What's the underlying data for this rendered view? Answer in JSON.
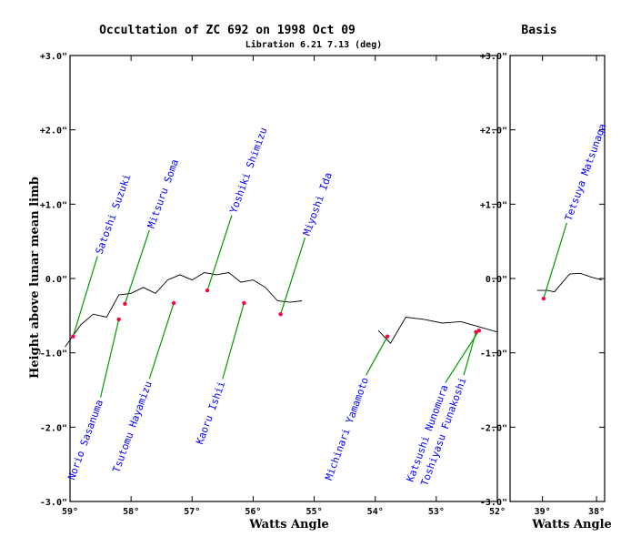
{
  "chart_data": {
    "type": "scatter",
    "title": "Occultation of ZC  692 on 1998 Oct 09",
    "subtitle": "Libration    6.21   7.13 (deg)",
    "basis_title": "Basis",
    "ylabel": "Height above lunar mean limb",
    "xlabel": "Watts Angle",
    "main_panel": {
      "xlim": [
        59,
        52
      ],
      "ylim": [
        -3,
        3
      ],
      "x_ticks": [
        {
          "v": 59,
          "label": "59°"
        },
        {
          "v": 58,
          "label": "58°"
        },
        {
          "v": 57,
          "label": "57°"
        },
        {
          "v": 56,
          "label": "56°"
        },
        {
          "v": 55,
          "label": "55°"
        },
        {
          "v": 54,
          "label": "54°"
        },
        {
          "v": 53,
          "label": "53°"
        },
        {
          "v": 52,
          "label": "52°"
        }
      ],
      "y_ticks": [
        {
          "v": 3,
          "label": "+3.0\""
        },
        {
          "v": 2,
          "label": "+2.0\""
        },
        {
          "v": 1,
          "label": "+1.0\""
        },
        {
          "v": 0,
          "label": "0.0\""
        },
        {
          "v": -1,
          "label": "-1.0\""
        },
        {
          "v": -2,
          "label": "-2.0\""
        },
        {
          "v": -3,
          "label": "-3.0\""
        }
      ],
      "limb_profile": [
        [
          [
            59.08,
            -0.92
          ],
          [
            58.82,
            -0.62
          ],
          [
            58.62,
            -0.48
          ],
          [
            58.4,
            -0.52
          ],
          [
            58.2,
            -0.22
          ],
          [
            58.0,
            -0.2
          ],
          [
            57.8,
            -0.12
          ],
          [
            57.6,
            -0.2
          ],
          [
            57.4,
            -0.02
          ],
          [
            57.2,
            0.05
          ],
          [
            57.0,
            -0.02
          ],
          [
            56.8,
            0.08
          ],
          [
            56.6,
            0.05
          ],
          [
            56.4,
            0.08
          ],
          [
            56.2,
            -0.05
          ],
          [
            56.0,
            -0.02
          ],
          [
            55.8,
            -0.12
          ],
          [
            55.6,
            -0.3
          ],
          [
            55.4,
            -0.32
          ],
          [
            55.2,
            -0.3
          ]
        ],
        [
          [
            53.95,
            -0.7
          ],
          [
            53.75,
            -0.87
          ],
          [
            53.5,
            -0.52
          ],
          [
            53.2,
            -0.55
          ],
          [
            52.9,
            -0.6
          ],
          [
            52.6,
            -0.58
          ],
          [
            52.3,
            -0.65
          ],
          [
            52.0,
            -0.72
          ]
        ]
      ],
      "observers": [
        {
          "name": "Satoshi Suzuki",
          "x": 58.95,
          "y": -0.78,
          "label_x": 58.55,
          "label_y": 0.3
        },
        {
          "name": "Mitsuru Soma",
          "x": 58.1,
          "y": -0.34,
          "label_x": 57.7,
          "label_y": 0.65
        },
        {
          "name": "Yoshiki Shimizu",
          "x": 56.75,
          "y": -0.16,
          "label_x": 56.35,
          "label_y": 0.85
        },
        {
          "name": "Miyoshi Ida",
          "x": 55.55,
          "y": -0.48,
          "label_x": 55.15,
          "label_y": 0.55
        },
        {
          "name": "Norio Sasanuma",
          "x": 58.2,
          "y": -0.55,
          "label_x": 58.5,
          "label_y": -1.6
        },
        {
          "name": "Tsutomu Hayamizu",
          "x": 57.3,
          "y": -0.33,
          "label_x": 57.7,
          "label_y": -1.35
        },
        {
          "name": "Kaoru Ishii",
          "x": 56.15,
          "y": -0.33,
          "label_x": 56.5,
          "label_y": -1.35
        },
        {
          "name": "Michinari Yamamoto",
          "x": 53.8,
          "y": -0.78,
          "label_x": 54.15,
          "label_y": -1.3
        },
        {
          "name": "Katsushi Nunomura",
          "x": 52.3,
          "y": -0.7,
          "label_x": 52.85,
          "label_y": -1.4
        },
        {
          "name": "Toshiyasu Funakoshi",
          "x": 52.35,
          "y": -0.72,
          "label_x": 52.55,
          "label_y": -1.3
        }
      ]
    },
    "basis_panel": {
      "xlim": [
        39.6,
        37.85
      ],
      "ylim": [
        -3,
        3
      ],
      "x_ticks": [
        {
          "v": 39,
          "label": "39°"
        },
        {
          "v": 38,
          "label": "38°"
        }
      ],
      "y_ticks": [
        {
          "v": 3,
          "label": "+3.0\""
        },
        {
          "v": 2,
          "label": "+2.0\""
        },
        {
          "v": 1,
          "label": "+1.0\""
        },
        {
          "v": 0,
          "label": "0.0\""
        },
        {
          "v": -1,
          "label": "-1.0\""
        },
        {
          "v": -2,
          "label": "-2.0\""
        },
        {
          "v": -3,
          "label": "-3.0\""
        }
      ],
      "limb_profile": [
        [
          [
            39.1,
            -0.16
          ],
          [
            38.9,
            -0.16
          ],
          [
            38.78,
            -0.18
          ],
          [
            38.5,
            0.06
          ],
          [
            38.3,
            0.07
          ],
          [
            38.1,
            0.02
          ],
          [
            37.9,
            -0.02
          ]
        ]
      ],
      "observers": [
        {
          "name": "Tetsuya Matsunaga",
          "x": 38.98,
          "y": -0.27,
          "label_x": 38.55,
          "label_y": 0.75
        }
      ]
    },
    "colors": {
      "observer_dot": "#ff0040",
      "observer_line": "#009900",
      "label": "#0000ff",
      "limb": "#000000"
    }
  }
}
